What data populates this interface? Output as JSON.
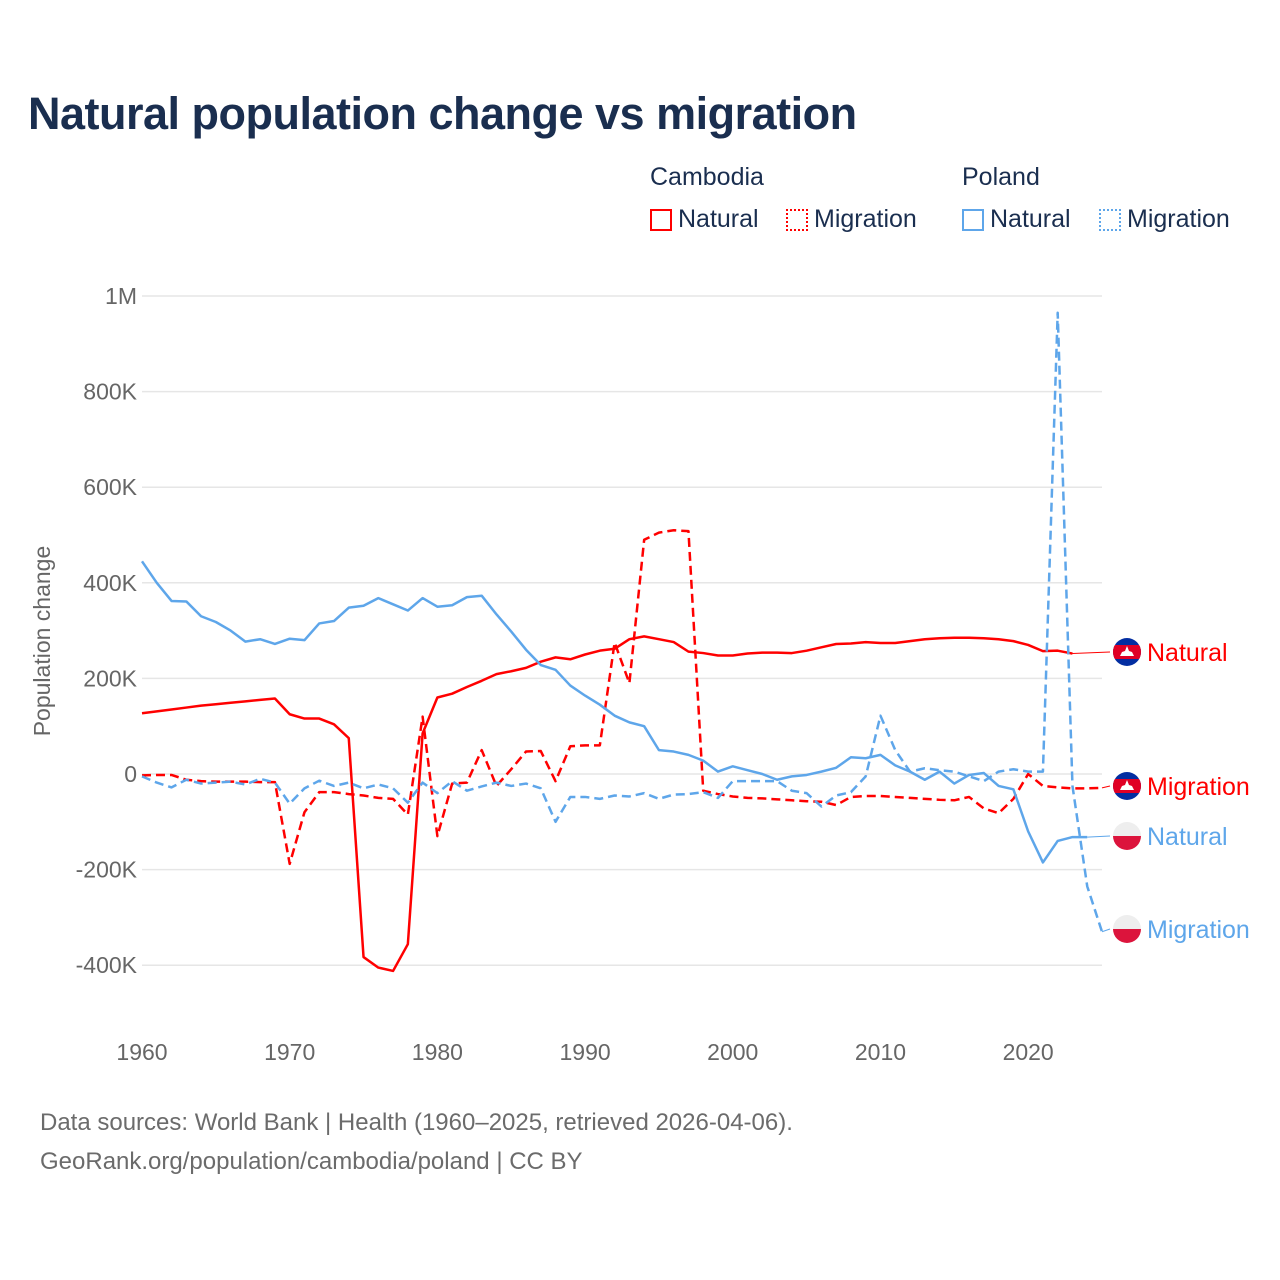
{
  "title": "Natural population change vs migration",
  "legend": {
    "groups": [
      {
        "name": "Cambodia",
        "items": [
          "Natural",
          "Migration"
        ]
      },
      {
        "name": "Poland",
        "items": [
          "Natural",
          "Migration"
        ]
      }
    ]
  },
  "colors": {
    "cambodia": "#ff0000",
    "poland": "#5ea6ea",
    "text": "#1a2e4f",
    "grid": "#e6e6e6",
    "tick": "#666666"
  },
  "footer": {
    "line1": "Data sources: World Bank | Health (1960–2025, retrieved 2026-04-06).",
    "line2": "GeoRank.org/population/cambodia/poland | CC BY"
  },
  "chart_data": {
    "type": "line",
    "title": "Natural population change vs migration",
    "xlabel": "",
    "ylabel": "Population change",
    "xlim": [
      1960,
      2025
    ],
    "ylim": [
      -500000,
      1000000
    ],
    "x_ticks": [
      1960,
      1970,
      1980,
      1990,
      2000,
      2010,
      2020
    ],
    "y_ticks": [
      {
        "v": 1000000,
        "label": "1M"
      },
      {
        "v": 800000,
        "label": "800K"
      },
      {
        "v": 600000,
        "label": "600K"
      },
      {
        "v": 400000,
        "label": "400K"
      },
      {
        "v": 200000,
        "label": "200K"
      },
      {
        "v": 0,
        "label": "0"
      },
      {
        "v": -200000,
        "label": "-200K"
      },
      {
        "v": -400000,
        "label": "-400K"
      }
    ],
    "grid": true,
    "legend_position": "top-right",
    "x_start": 1960,
    "series": [
      {
        "name": "Cambodia Natural",
        "end_label": "Natural",
        "country": "cambodia",
        "dashed": false,
        "values": [
          127,
          131,
          135,
          139,
          143,
          146,
          149,
          152,
          155,
          158,
          125,
          116,
          116,
          104,
          75,
          -383,
          -405,
          -412,
          -356,
          85,
          160,
          168,
          182,
          195,
          209,
          215,
          222,
          235,
          244,
          240,
          250,
          258,
          262,
          282,
          288,
          282,
          276,
          256,
          253,
          248,
          248,
          252,
          254,
          254,
          253,
          258,
          265,
          272,
          273,
          276,
          274,
          274,
          278,
          282,
          284,
          285,
          285,
          284,
          282,
          278,
          270,
          257,
          258,
          252
        ]
      },
      {
        "name": "Cambodia Migration",
        "end_label": "Migration",
        "country": "cambodia",
        "dashed": true,
        "values": [
          -3,
          -2,
          -2,
          -12,
          -15,
          -16,
          -16,
          -16,
          -17,
          -17,
          -188,
          -80,
          -38,
          -38,
          -42,
          -45,
          -50,
          -52,
          -85,
          120,
          -130,
          -20,
          -18,
          50,
          -25,
          10,
          47,
          48,
          -15,
          58,
          60,
          60,
          275,
          190,
          490,
          505,
          510,
          508,
          -35,
          -42,
          -47,
          -50,
          -51,
          -53,
          -55,
          -57,
          -58,
          -65,
          -48,
          -46,
          -46,
          -48,
          -50,
          -52,
          -54,
          -55,
          -48,
          -72,
          -82,
          -52,
          0,
          -25,
          -28,
          -30,
          -30,
          -29
        ]
      },
      {
        "name": "Poland Natural",
        "end_label": "Natural",
        "country": "poland",
        "dashed": false,
        "values": [
          445,
          400,
          362,
          361,
          330,
          318,
          300,
          277,
          282,
          272,
          283,
          280,
          315,
          320,
          348,
          352,
          368,
          355,
          342,
          368,
          350,
          353,
          370,
          373,
          334,
          298,
          260,
          228,
          218,
          185,
          164,
          145,
          122,
          108,
          100,
          50,
          47,
          40,
          28,
          5,
          16,
          8,
          0,
          -12,
          -5,
          -2,
          5,
          13,
          35,
          33,
          40,
          18,
          5,
          -12,
          5,
          -20,
          -2,
          2,
          -25,
          -32,
          -120,
          -185,
          -140,
          -132,
          -132
        ]
      },
      {
        "name": "Poland Migration",
        "end_label": "Migration",
        "country": "poland",
        "dashed": true,
        "values": [
          -5,
          -18,
          -28,
          -12,
          -20,
          -18,
          -16,
          -22,
          -10,
          -18,
          -62,
          -30,
          -14,
          -25,
          -18,
          -30,
          -22,
          -30,
          -60,
          -18,
          -40,
          -15,
          -35,
          -26,
          -18,
          -25,
          -20,
          -30,
          -100,
          -48,
          -48,
          -52,
          -45,
          -47,
          -40,
          -52,
          -43,
          -42,
          -38,
          -50,
          -15,
          -15,
          -15,
          -15,
          -35,
          -40,
          -68,
          -45,
          -38,
          -5,
          122,
          50,
          5,
          12,
          8,
          5,
          -5,
          -15,
          5,
          10,
          5,
          5,
          965,
          -25,
          -235,
          -330
        ]
      }
    ],
    "value_unit": "thousands"
  }
}
